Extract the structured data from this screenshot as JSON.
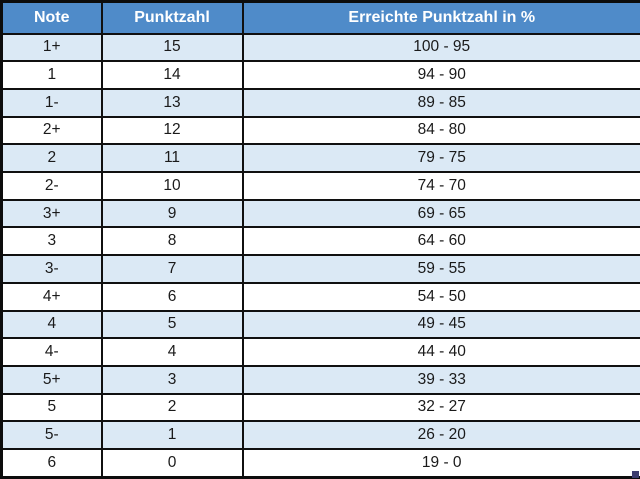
{
  "table": {
    "headers": {
      "note": "Note",
      "punktzahl": "Punktzahl",
      "prozent": "Erreichte Punktzahl in %"
    },
    "rows": [
      {
        "note": "1+",
        "punktzahl": "15",
        "prozent": "100 - 95"
      },
      {
        "note": "1",
        "punktzahl": "14",
        "prozent": "94 - 90"
      },
      {
        "note": "1-",
        "punktzahl": "13",
        "prozent": "89 - 85"
      },
      {
        "note": "2+",
        "punktzahl": "12",
        "prozent": "84 - 80"
      },
      {
        "note": "2",
        "punktzahl": "11",
        "prozent": "79 - 75"
      },
      {
        "note": "2-",
        "punktzahl": "10",
        "prozent": "74 - 70"
      },
      {
        "note": "3+",
        "punktzahl": "9",
        "prozent": "69 - 65"
      },
      {
        "note": "3",
        "punktzahl": "8",
        "prozent": "64 - 60"
      },
      {
        "note": "3-",
        "punktzahl": "7",
        "prozent": "59 - 55"
      },
      {
        "note": "4+",
        "punktzahl": "6",
        "prozent": "54 - 50"
      },
      {
        "note": "4",
        "punktzahl": "5",
        "prozent": "49 - 45"
      },
      {
        "note": "4-",
        "punktzahl": "4",
        "prozent": "44 - 40"
      },
      {
        "note": "5+",
        "punktzahl": "3",
        "prozent": "39 - 33"
      },
      {
        "note": "5",
        "punktzahl": "2",
        "prozent": "32 - 27"
      },
      {
        "note": "5-",
        "punktzahl": "1",
        "prozent": "26 - 20"
      },
      {
        "note": "6",
        "punktzahl": "0",
        "prozent": "19 - 0"
      }
    ]
  },
  "colors": {
    "header_bg": "#4f8bc9",
    "header_text": "#ffffff",
    "row_alt_bg": "#dbe9f5",
    "row_bg": "#ffffff",
    "border": "#101010",
    "body_text": "#1a1a1a",
    "corner_handle": "#3c3c6e"
  }
}
